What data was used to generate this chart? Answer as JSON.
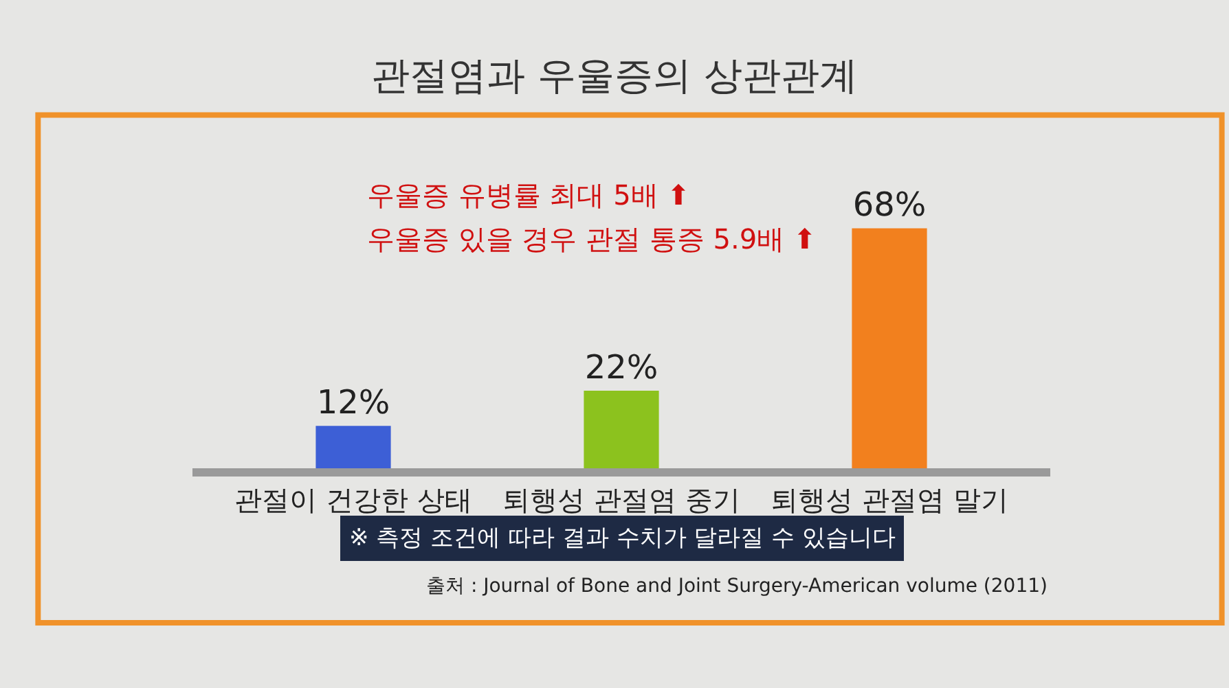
{
  "chart_data": {
    "type": "bar",
    "title": "관절염과 우울증의 상관관계",
    "categories": [
      "관절이 건강한 상태",
      "퇴행성 관절염 중기",
      "퇴행성 관절염 말기"
    ],
    "values": [
      12,
      22,
      68
    ],
    "colors": [
      "#3d5fd6",
      "#8cc21e",
      "#f2801e"
    ],
    "value_labels": [
      "12%",
      "22%",
      "68%"
    ],
    "annotations": [
      "우울증 유병률 최대 5배 ⬆",
      "우울증 있을 경우 관절 통증 5.9배 ⬆",
      "※ 측정 조건에 따라 결과 수치가 달라질 수 있습니다",
      "출처 : Journal of Bone and Joint Surgery-American volume (2011)"
    ]
  }
}
